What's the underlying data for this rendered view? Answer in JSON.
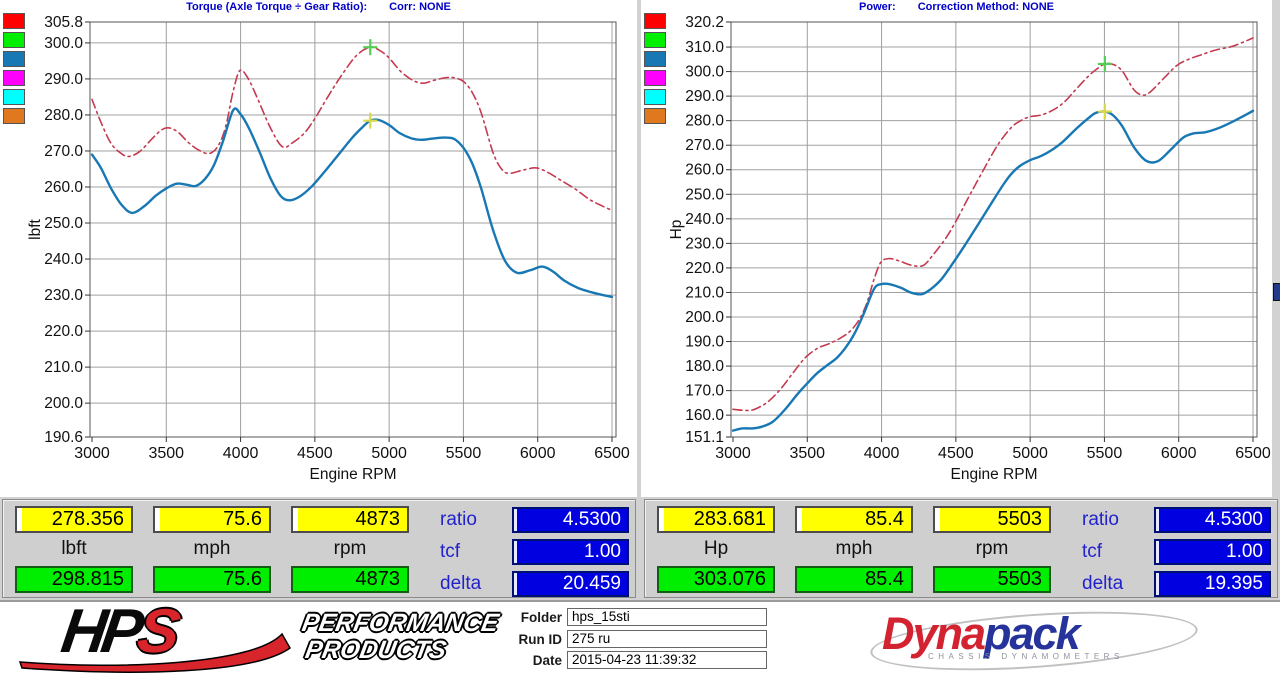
{
  "colors": {
    "background": "#d2d2d2",
    "title_blue": "#0000c8",
    "grid": "#a0a0a0",
    "axis_box": "#555555",
    "run_red": "#c43a50",
    "run_blue": "#1878b4",
    "marker_green": "#55cc55",
    "marker_yellow": "#d8d84a",
    "cursor_box_yellow": "#ffff00",
    "peak_box_green": "#00ee00",
    "param_box_blue": "#0000e0"
  },
  "legend_swatches": [
    "#ff0000",
    "#00ee00",
    "#1878b4",
    "#ff00ff",
    "#00ffff",
    "#e07820"
  ],
  "chart_data": [
    {
      "type": "line",
      "title": "Torque (Axle Torque ÷ Gear Ratio):",
      "subtitle": "Corr: NONE",
      "xlabel": "Engine RPM",
      "ylabel": "lbft",
      "xlim": [
        3000,
        6500
      ],
      "ylim": [
        190.6,
        305.8
      ],
      "grid": true,
      "x_ticks": [
        "3000",
        "3500",
        "4000",
        "4500",
        "5000",
        "5500",
        "6000",
        "6500"
      ],
      "y_ticks": [
        305.8,
        300.0,
        290.0,
        280.0,
        270.0,
        260.0,
        250.0,
        240.0,
        230.0,
        220.0,
        210.0,
        200.0,
        190.6
      ],
      "series": [
        {
          "name": "baseline-run-torque",
          "color": "#c43a50",
          "style": "dashdot",
          "width": 1.6,
          "points": [
            [
              3000,
              284.3
            ],
            [
              3060,
              278.0
            ],
            [
              3130,
              272.0
            ],
            [
              3200,
              269.2
            ],
            [
              3250,
              268.5
            ],
            [
              3320,
              269.8
            ],
            [
              3400,
              273.2
            ],
            [
              3470,
              275.9
            ],
            [
              3520,
              276.4
            ],
            [
              3580,
              275.2
            ],
            [
              3650,
              272.3
            ],
            [
              3720,
              270.2
            ],
            [
              3790,
              269.3
            ],
            [
              3850,
              271.5
            ],
            [
              3900,
              276.8
            ],
            [
              3950,
              286.5
            ],
            [
              3995,
              292.3
            ],
            [
              4050,
              290.2
            ],
            [
              4120,
              284.0
            ],
            [
              4200,
              276.5
            ],
            [
              4280,
              271.2
            ],
            [
              4350,
              272.3
            ],
            [
              4430,
              275.0
            ],
            [
              4500,
              279.0
            ],
            [
              4580,
              284.5
            ],
            [
              4680,
              291.0
            ],
            [
              4780,
              296.5
            ],
            [
              4873,
              298.8
            ],
            [
              4940,
              297.8
            ],
            [
              5000,
              295.8
            ],
            [
              5080,
              292.0
            ],
            [
              5160,
              289.6
            ],
            [
              5230,
              288.8
            ],
            [
              5300,
              289.6
            ],
            [
              5390,
              290.4
            ],
            [
              5450,
              290.2
            ],
            [
              5503,
              289.2
            ],
            [
              5560,
              286.2
            ],
            [
              5620,
              280.5
            ],
            [
              5700,
              269.5
            ],
            [
              5760,
              264.8
            ],
            [
              5810,
              263.8
            ],
            [
              5900,
              264.7
            ],
            [
              5990,
              265.3
            ],
            [
              6070,
              264.0
            ],
            [
              6150,
              262.0
            ],
            [
              6250,
              259.5
            ],
            [
              6350,
              256.5
            ],
            [
              6430,
              254.8
            ],
            [
              6500,
              253.5
            ]
          ]
        },
        {
          "name": "current-run-torque",
          "color": "#1878b4",
          "style": "solid",
          "width": 2.4,
          "points": [
            [
              3000,
              269.0
            ],
            [
              3060,
              265.3
            ],
            [
              3130,
              259.5
            ],
            [
              3200,
              255.0
            ],
            [
              3270,
              252.8
            ],
            [
              3350,
              254.6
            ],
            [
              3430,
              257.6
            ],
            [
              3500,
              259.6
            ],
            [
              3570,
              260.9
            ],
            [
              3640,
              260.6
            ],
            [
              3700,
              260.3
            ],
            [
              3760,
              262.2
            ],
            [
              3820,
              266.0
            ],
            [
              3880,
              272.5
            ],
            [
              3950,
              281.3
            ],
            [
              4000,
              280.2
            ],
            [
              4060,
              276.0
            ],
            [
              4130,
              269.5
            ],
            [
              4200,
              262.5
            ],
            [
              4270,
              257.5
            ],
            [
              4330,
              256.3
            ],
            [
              4400,
              257.4
            ],
            [
              4480,
              260.2
            ],
            [
              4560,
              264.0
            ],
            [
              4650,
              268.5
            ],
            [
              4750,
              273.6
            ],
            [
              4820,
              276.6
            ],
            [
              4873,
              278.4
            ],
            [
              4930,
              278.6
            ],
            [
              5000,
              277.2
            ],
            [
              5070,
              275.0
            ],
            [
              5150,
              273.5
            ],
            [
              5220,
              273.1
            ],
            [
              5300,
              273.5
            ],
            [
              5380,
              273.7
            ],
            [
              5440,
              273.3
            ],
            [
              5503,
              270.7
            ],
            [
              5560,
              266.5
            ],
            [
              5620,
              259.5
            ],
            [
              5700,
              248.0
            ],
            [
              5780,
              239.5
            ],
            [
              5860,
              236.2
            ],
            [
              5950,
              236.9
            ],
            [
              6030,
              237.9
            ],
            [
              6100,
              236.6
            ],
            [
              6180,
              234.0
            ],
            [
              6270,
              232.0
            ],
            [
              6360,
              230.8
            ],
            [
              6440,
              230.0
            ],
            [
              6500,
              229.5
            ]
          ]
        }
      ],
      "markers": [
        {
          "x": 4873,
          "y": 298.8,
          "color": "#55cc55",
          "name": "peak-torque-marker-baseline"
        },
        {
          "x": 4873,
          "y": 278.4,
          "color": "#d8d84a",
          "name": "peak-torque-marker-current"
        }
      ]
    },
    {
      "type": "line",
      "title": "Power:",
      "subtitle": "Correction Method: NONE",
      "xlabel": "Engine RPM",
      "ylabel": "Hp",
      "xlim": [
        3000,
        6500
      ],
      "ylim": [
        151.1,
        320.2
      ],
      "grid": true,
      "x_ticks": [
        "3000",
        "3500",
        "4000",
        "4500",
        "5000",
        "5500",
        "6000",
        "6500"
      ],
      "y_ticks": [
        320.2,
        310.0,
        300.0,
        290.0,
        280.0,
        270.0,
        260.0,
        250.0,
        240.0,
        230.0,
        220.0,
        210.0,
        200.0,
        190.0,
        180.0,
        170.0,
        160.0,
        151.1
      ],
      "series": [
        {
          "name": "baseline-run-power",
          "color": "#c43a50",
          "style": "dashdot",
          "width": 1.6,
          "points": [
            [
              3000,
              162.4
            ],
            [
              3060,
              162.0
            ],
            [
              3130,
              162.1
            ],
            [
              3200,
              164.0
            ],
            [
              3250,
              166.2
            ],
            [
              3320,
              170.6
            ],
            [
              3400,
              176.9
            ],
            [
              3470,
              182.3
            ],
            [
              3520,
              185.2
            ],
            [
              3580,
              187.6
            ],
            [
              3650,
              189.2
            ],
            [
              3720,
              191.3
            ],
            [
              3790,
              194.3
            ],
            [
              3850,
              199.0
            ],
            [
              3900,
              205.5
            ],
            [
              3950,
              215.5
            ],
            [
              3995,
              222.3
            ],
            [
              4050,
              223.8
            ],
            [
              4120,
              222.8
            ],
            [
              4200,
              221.1
            ],
            [
              4280,
              221.0
            ],
            [
              4350,
              225.6
            ],
            [
              4430,
              231.9
            ],
            [
              4500,
              239.0
            ],
            [
              4580,
              248.1
            ],
            [
              4680,
              259.3
            ],
            [
              4780,
              269.9
            ],
            [
              4873,
              277.2
            ],
            [
              4940,
              280.1
            ],
            [
              5000,
              281.6
            ],
            [
              5080,
              282.4
            ],
            [
              5160,
              284.5
            ],
            [
              5230,
              287.6
            ],
            [
              5300,
              292.2
            ],
            [
              5390,
              298.0
            ],
            [
              5450,
              301.1
            ],
            [
              5503,
              303.1
            ],
            [
              5560,
              302.9
            ],
            [
              5620,
              300.2
            ],
            [
              5700,
              292.5
            ],
            [
              5760,
              290.4
            ],
            [
              5810,
              291.8
            ],
            [
              5900,
              297.3
            ],
            [
              5990,
              302.6
            ],
            [
              6070,
              305.1
            ],
            [
              6150,
              306.8
            ],
            [
              6250,
              308.8
            ],
            [
              6350,
              310.1
            ],
            [
              6430,
              311.9
            ],
            [
              6500,
              313.7
            ]
          ]
        },
        {
          "name": "current-run-power",
          "color": "#1878b4",
          "style": "solid",
          "width": 2.4,
          "points": [
            [
              3000,
              153.7
            ],
            [
              3060,
              154.6
            ],
            [
              3130,
              154.6
            ],
            [
              3200,
              155.4
            ],
            [
              3270,
              157.4
            ],
            [
              3350,
              162.3
            ],
            [
              3430,
              168.3
            ],
            [
              3500,
              173.0
            ],
            [
              3570,
              177.3
            ],
            [
              3640,
              180.6
            ],
            [
              3700,
              183.4
            ],
            [
              3760,
              187.7
            ],
            [
              3820,
              193.5
            ],
            [
              3880,
              201.3
            ],
            [
              3950,
              211.5
            ],
            [
              4000,
              213.4
            ],
            [
              4060,
              213.3
            ],
            [
              4130,
              211.9
            ],
            [
              4200,
              209.9
            ],
            [
              4270,
              209.3
            ],
            [
              4330,
              211.3
            ],
            [
              4400,
              215.2
            ],
            [
              4480,
              221.9
            ],
            [
              4560,
              229.2
            ],
            [
              4650,
              237.7
            ],
            [
              4750,
              247.4
            ],
            [
              4820,
              254.0
            ],
            [
              4873,
              258.3
            ],
            [
              4930,
              261.5
            ],
            [
              5000,
              263.9
            ],
            [
              5070,
              265.5
            ],
            [
              5150,
              268.2
            ],
            [
              5220,
              271.4
            ],
            [
              5300,
              276.1
            ],
            [
              5380,
              280.4
            ],
            [
              5440,
              283.1
            ],
            [
              5503,
              283.7
            ],
            [
              5560,
              282.1
            ],
            [
              5620,
              277.7
            ],
            [
              5700,
              269.1
            ],
            [
              5780,
              263.7
            ],
            [
              5860,
              263.5
            ],
            [
              5950,
              268.4
            ],
            [
              6030,
              273.1
            ],
            [
              6100,
              274.8
            ],
            [
              6180,
              275.3
            ],
            [
              6270,
              277.0
            ],
            [
              6360,
              279.5
            ],
            [
              6440,
              282.0
            ],
            [
              6500,
              284.0
            ]
          ]
        }
      ],
      "markers": [
        {
          "x": 5503,
          "y": 303.1,
          "color": "#55cc55",
          "name": "peak-power-marker-baseline"
        },
        {
          "x": 5503,
          "y": 283.7,
          "color": "#d8d84a",
          "name": "peak-power-marker-current"
        }
      ]
    }
  ],
  "readouts": [
    {
      "cells": [
        {
          "value": "278.356",
          "label": "lbft",
          "peak": "298.815"
        },
        {
          "value": "75.6",
          "label": "mph",
          "peak": "75.6"
        },
        {
          "value": "4873",
          "label": "rpm",
          "peak": "4873"
        }
      ],
      "params": [
        {
          "label": "ratio",
          "value": "4.5300"
        },
        {
          "label": "tcf",
          "value": "1.00"
        },
        {
          "label": "delta",
          "value": "20.459"
        }
      ]
    },
    {
      "cells": [
        {
          "value": "283.681",
          "label": "Hp",
          "peak": "303.076"
        },
        {
          "value": "85.4",
          "label": "mph",
          "peak": "85.4"
        },
        {
          "value": "5503",
          "label": "rpm",
          "peak": "5503"
        }
      ],
      "params": [
        {
          "label": "ratio",
          "value": "4.5300"
        },
        {
          "label": "tcf",
          "value": "1.00"
        },
        {
          "label": "delta",
          "value": "19.395"
        }
      ]
    }
  ],
  "footer": {
    "hps": {
      "letters_black": "HP",
      "letter_red": "S",
      "line1": "PERFORMANCE",
      "line2": "PRODUCTS"
    },
    "fields": [
      {
        "label": "Folder",
        "value": "hps_15sti"
      },
      {
        "label": "Run ID",
        "value": "275 ru"
      },
      {
        "label": "Date",
        "value": "2015-04-23 11:39:32"
      }
    ],
    "dynapack": {
      "word_red": "Dyna",
      "word_blue": "pack",
      "tagline": "CHASSIS  DYNAMOMETERS"
    }
  }
}
